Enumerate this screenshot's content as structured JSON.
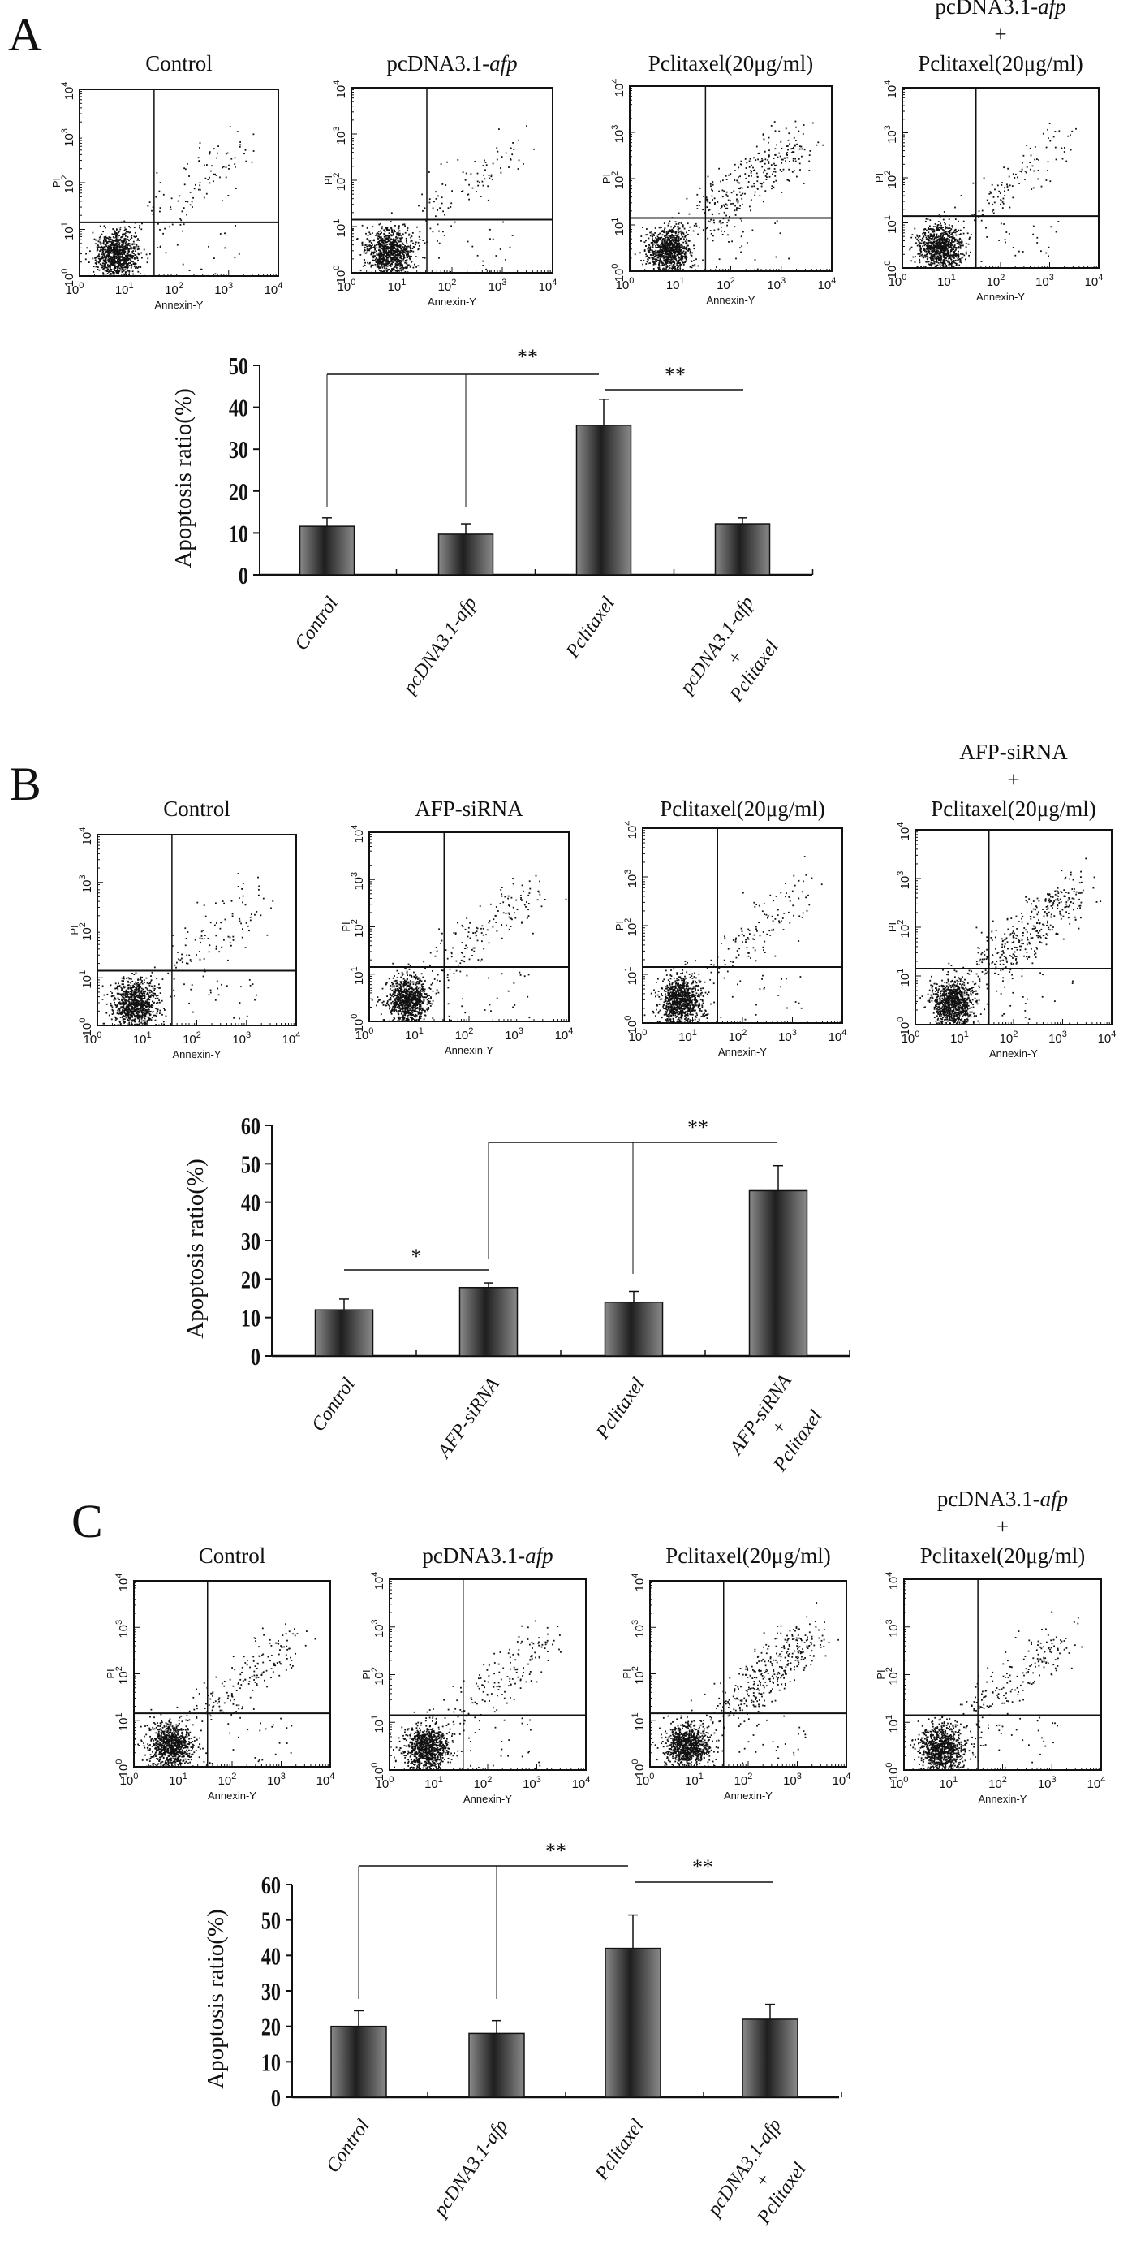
{
  "colors": {
    "bar_dark": "#1e1e1e",
    "bar_light": "#8a8a8a",
    "ink": "#111111"
  },
  "flow_axes": {
    "x_label": "Annexin-Y",
    "y_label": "PI",
    "tick_base": "10",
    "tick_exponents": [
      "0",
      "1",
      "2",
      "3",
      "4"
    ],
    "scale": "log"
  },
  "panels": [
    {
      "letter": "A",
      "flow_plots": [
        {
          "title_lines": [
            {
              "text": "Control"
            }
          ]
        },
        {
          "title_lines": [
            {
              "text": "pcDNA3.1-",
              "italic": "afp"
            }
          ]
        },
        {
          "title_lines": [
            {
              "text": "Pclitaxel(20μg/ml)"
            }
          ]
        },
        {
          "title_lines": [
            {
              "text": "pcDNA3.1-",
              "italic": "afp"
            },
            {
              "text": "+"
            },
            {
              "text": "Pclitaxel(20μg/ml)"
            }
          ]
        }
      ]
    },
    {
      "letter": "B",
      "flow_plots": [
        {
          "title_lines": [
            {
              "text": "Control"
            }
          ]
        },
        {
          "title_lines": [
            {
              "text": "AFP-siRNA"
            }
          ]
        },
        {
          "title_lines": [
            {
              "text": "Pclitaxel(20μg/ml)"
            }
          ]
        },
        {
          "title_lines": [
            {
              "text": "AFP-siRNA"
            },
            {
              "text": "+"
            },
            {
              "text": "Pclitaxel(20μg/ml)"
            }
          ]
        }
      ]
    },
    {
      "letter": "C",
      "flow_plots": [
        {
          "title_lines": [
            {
              "text": "Control"
            }
          ]
        },
        {
          "title_lines": [
            {
              "text": "pcDNA3.1-",
              "italic": "afp"
            }
          ]
        },
        {
          "title_lines": [
            {
              "text": "Pclitaxel(20μg/ml)"
            }
          ]
        },
        {
          "title_lines": [
            {
              "text": "pcDNA3.1-",
              "italic": "afp"
            },
            {
              "text": "+"
            },
            {
              "text": "Pclitaxel(20μg/ml)"
            }
          ]
        }
      ]
    }
  ],
  "chart_data": [
    {
      "type": "bar",
      "panel": "A",
      "ylabel": "Apoptosis ratio(%)",
      "ylim": [
        0,
        50
      ],
      "yticks": [
        0,
        10,
        20,
        30,
        40,
        50
      ],
      "grid": false,
      "categories": [
        [
          {
            "text": "Control"
          }
        ],
        [
          {
            "text": "pcDNA3.1-",
            "italic": "afp"
          }
        ],
        [
          {
            "text": "Pclitaxel"
          }
        ],
        [
          {
            "text": "pcDNA3.1-",
            "italic": "afp"
          },
          {
            "text": "+"
          },
          {
            "text": "Pclitaxel"
          }
        ]
      ],
      "values": [
        11.6,
        9.7,
        35.7,
        12.2
      ],
      "errors": [
        2.0,
        2.5,
        6.2,
        1.4
      ],
      "significance": [
        {
          "label": "**",
          "from": [
            0,
            1
          ],
          "to": 2
        },
        {
          "label": "**",
          "from": [
            2
          ],
          "to": 3
        }
      ]
    },
    {
      "type": "bar",
      "panel": "B",
      "ylabel": "Apoptosis ratio(%)",
      "ylim": [
        0,
        60
      ],
      "yticks": [
        0,
        10,
        20,
        30,
        40,
        50,
        60
      ],
      "grid": false,
      "categories": [
        [
          {
            "text": "Control"
          }
        ],
        [
          {
            "text": "AFP-siRNA"
          }
        ],
        [
          {
            "text": "Pclitaxel"
          }
        ],
        [
          {
            "text": "AFP-siRNA"
          },
          {
            "text": "+"
          },
          {
            "text": "Pclitaxel"
          }
        ]
      ],
      "values": [
        12.0,
        17.8,
        14.0,
        43.0
      ],
      "errors": [
        2.8,
        1.2,
        2.8,
        6.5
      ],
      "significance": [
        {
          "label": "*",
          "from": [
            0
          ],
          "to": 1
        },
        {
          "label": "**",
          "from": [
            1,
            2
          ],
          "to": 3
        }
      ]
    },
    {
      "type": "bar",
      "panel": "C",
      "ylabel": "Apoptosis ratio(%)",
      "ylim": [
        0,
        60
      ],
      "yticks": [
        0,
        10,
        20,
        30,
        40,
        50,
        60
      ],
      "grid": false,
      "categories": [
        [
          {
            "text": "Control"
          }
        ],
        [
          {
            "text": "pcDNA3.1-",
            "italic": "afp"
          }
        ],
        [
          {
            "text": "Pclitaxel"
          }
        ],
        [
          {
            "text": "pcDNA3.1-",
            "italic": "afp"
          },
          {
            "text": "+"
          },
          {
            "text": "Pclitaxel"
          }
        ]
      ],
      "values": [
        20.0,
        18.0,
        42.0,
        22.0
      ],
      "errors": [
        4.4,
        3.6,
        9.4,
        4.2
      ],
      "significance": [
        {
          "label": "**",
          "from": [
            0,
            1
          ],
          "to": 2
        },
        {
          "label": "**",
          "from": [
            2
          ],
          "to": 3
        }
      ]
    }
  ]
}
